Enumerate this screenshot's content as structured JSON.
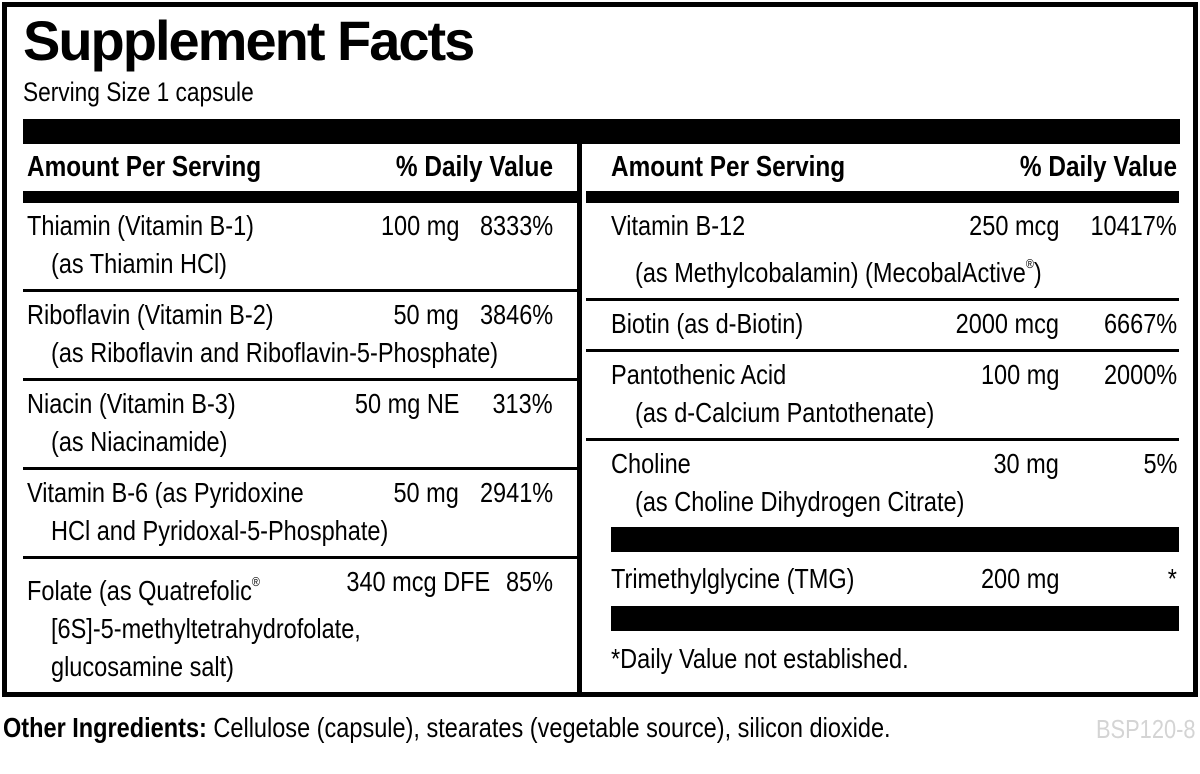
{
  "label": {
    "title": "Supplement Facts",
    "serving_size": "Serving Size 1 capsule",
    "header": {
      "amount": "Amount Per Serving",
      "daily_value": "% Daily Value"
    },
    "columns": {
      "left": {
        "rows": [
          {
            "name": "Thiamin (Vitamin B-1)",
            "amount": "100 mg",
            "dv": "8333%",
            "sub": "(as Thiamin HCl)"
          },
          {
            "name": "Riboflavin (Vitamin B-2)",
            "amount": "50 mg",
            "dv": "3846%",
            "sub": "(as Riboflavin and Riboflavin-5-Phosphate)"
          },
          {
            "name": "Niacin (Vitamin B-3)",
            "amount": "50 mg NE",
            "dv": "313%",
            "sub": "(as Niacinamide)"
          },
          {
            "name": "Vitamin B-6 (as Pyridoxine",
            "amount": "50 mg",
            "dv": "2941%",
            "sub": "HCl and Pyridoxal-5-Phosphate)"
          },
          {
            "name": "Folate (as Quatrefolic",
            "name_sup": "®",
            "amount": "340 mcg DFE",
            "dv": "85%",
            "sub": "[6S]-5-methyltetrahydrofolate,",
            "sub2": "glucosamine salt)"
          }
        ]
      },
      "right": {
        "rows": [
          {
            "name": "Vitamin B-12",
            "amount": "250 mcg",
            "dv": "10417%",
            "sub_pre": "(as Methylcobalamin) (MecobalActive",
            "sub_sup": "®",
            "sub_post": ")"
          },
          {
            "name": "Biotin (as d-Biotin)",
            "amount": "2000 mcg",
            "dv": "6667%"
          },
          {
            "name": "Pantothenic Acid",
            "amount": "100 mg",
            "dv": "2000%",
            "sub": "(as d-Calcium Pantothenate)"
          },
          {
            "name": "Choline",
            "amount": "30 mg",
            "dv": "5%",
            "sub": "(as Choline Dihydrogen Citrate)"
          },
          {
            "name": "Trimethylglycine (TMG)",
            "amount": "200 mg",
            "dv": "*"
          }
        ],
        "footnote": "*Daily Value not established."
      }
    },
    "other_ingredients": {
      "label": "Other Ingredients:",
      "text": " Cellulose (capsule), stearates (vegetable source), silicon dioxide."
    },
    "product_code": "BSP120-8",
    "colors": {
      "ink": "#000000",
      "paper": "#ffffff",
      "code_gray": "#d4d4d4"
    }
  }
}
